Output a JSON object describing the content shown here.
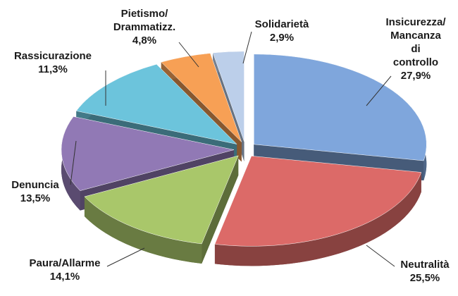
{
  "chart_data": {
    "type": "pie",
    "categories": [
      "Insicurezza/\nMancanza di\ncontrollo",
      "Neutralità",
      "Paura/Allarme",
      "Denuncia",
      "Rassicurazione",
      "Pietismo/\nDrammatizz.",
      "Solidarietà"
    ],
    "values": [
      27.9,
      25.5,
      14.1,
      13.5,
      11.3,
      4.8,
      2.9
    ],
    "value_labels": [
      "27,9%",
      "25,5%",
      "14,1%",
      "13,5%",
      "11,3%",
      "4,8%",
      "2,9%"
    ],
    "colors": [
      "#7fa6dc",
      "#dc6a68",
      "#a9c76a",
      "#9179b5",
      "#6cc4dc",
      "#f7a055",
      "#bccfea"
    ]
  }
}
